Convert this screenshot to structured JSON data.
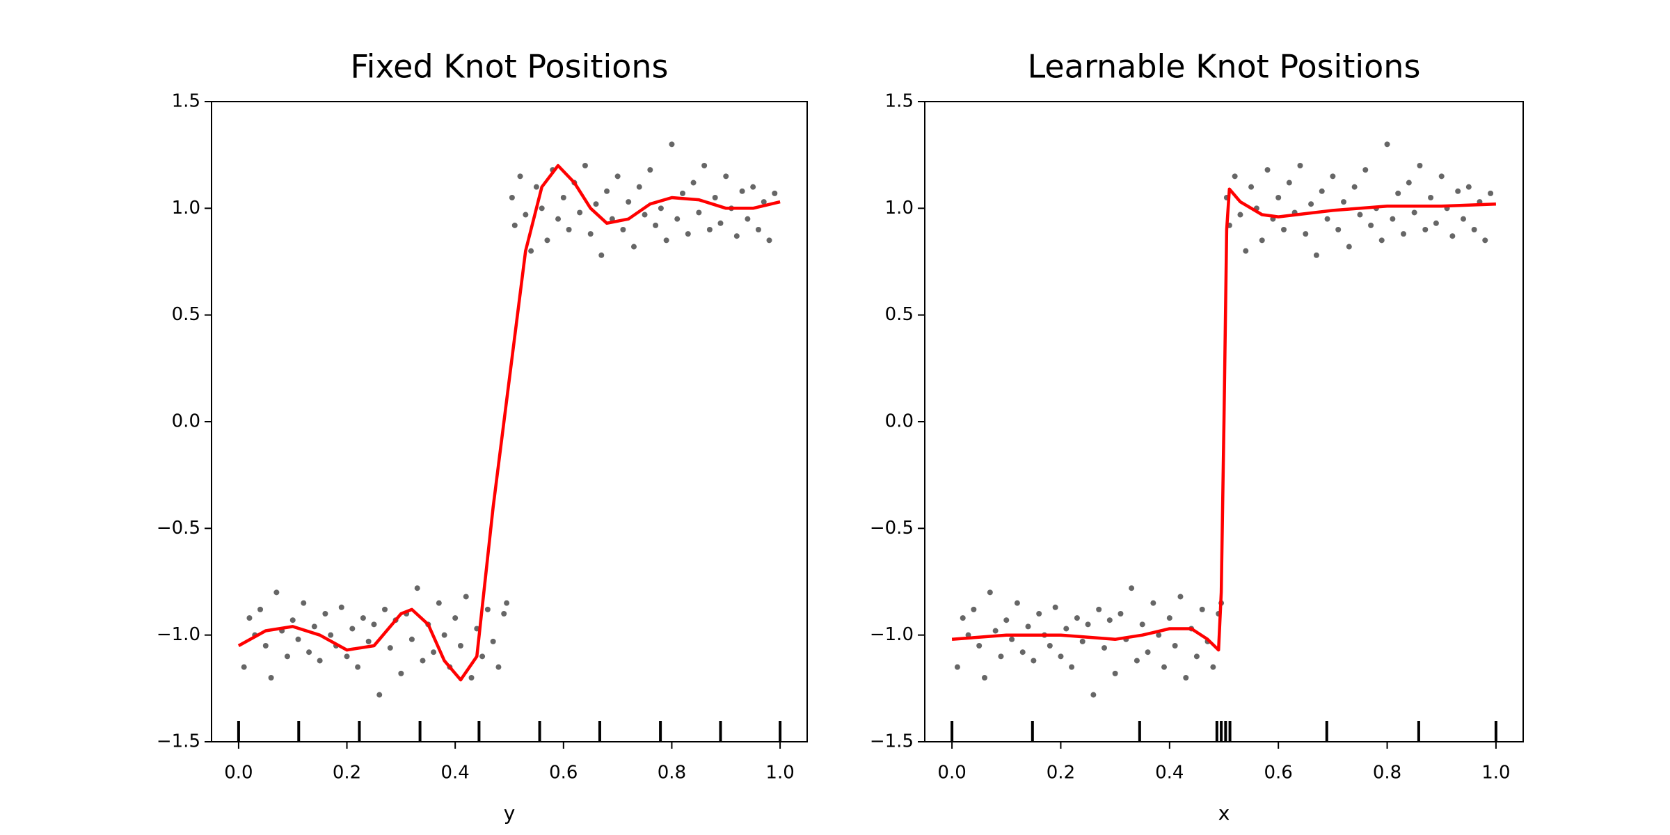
{
  "chart_data": [
    {
      "type": "scatter",
      "title": "Fixed Knot Positions",
      "xlabel": "y",
      "xlim": [
        -0.05,
        1.05
      ],
      "ylim": [
        -1.5,
        1.5
      ],
      "xticks": [
        {
          "value": 0,
          "label": "0.0"
        },
        {
          "value": 0.2,
          "label": "0.2"
        },
        {
          "value": 0.4,
          "label": "0.4"
        },
        {
          "value": 0.6,
          "label": "0.6"
        },
        {
          "value": 0.8,
          "label": "0.8"
        },
        {
          "value": 1,
          "label": "1.0"
        }
      ],
      "yticks": [
        {
          "value": -1.5,
          "label": "−1.5"
        },
        {
          "value": -1,
          "label": "−1.0"
        },
        {
          "value": -0.5,
          "label": "−0.5"
        },
        {
          "value": 0,
          "label": "0.0"
        },
        {
          "value": 0.5,
          "label": "0.5"
        },
        {
          "value": 1,
          "label": "1.0"
        },
        {
          "value": 1.5,
          "label": "1.5"
        }
      ],
      "points": {
        "color": "#333333",
        "x": [
          0.01,
          0.02,
          0.03,
          0.04,
          0.05,
          0.06,
          0.07,
          0.08,
          0.09,
          0.1,
          0.11,
          0.12,
          0.13,
          0.14,
          0.15,
          0.16,
          0.17,
          0.18,
          0.19,
          0.2,
          0.21,
          0.22,
          0.23,
          0.24,
          0.25,
          0.26,
          0.27,
          0.28,
          0.29,
          0.3,
          0.31,
          0.32,
          0.33,
          0.34,
          0.35,
          0.36,
          0.37,
          0.38,
          0.39,
          0.4,
          0.41,
          0.42,
          0.43,
          0.44,
          0.45,
          0.46,
          0.47,
          0.48,
          0.49,
          0.495,
          0.505,
          0.51,
          0.52,
          0.53,
          0.54,
          0.55,
          0.56,
          0.57,
          0.58,
          0.59,
          0.6,
          0.61,
          0.62,
          0.63,
          0.64,
          0.65,
          0.66,
          0.67,
          0.68,
          0.69,
          0.7,
          0.71,
          0.72,
          0.73,
          0.74,
          0.75,
          0.76,
          0.77,
          0.78,
          0.79,
          0.8,
          0.81,
          0.82,
          0.83,
          0.84,
          0.85,
          0.86,
          0.87,
          0.88,
          0.89,
          0.9,
          0.91,
          0.92,
          0.93,
          0.94,
          0.95,
          0.96,
          0.97,
          0.98,
          0.99
        ],
        "y": [
          -1.15,
          -0.92,
          -1.0,
          -0.88,
          -1.05,
          -1.2,
          -0.8,
          -0.98,
          -1.1,
          -0.93,
          -1.02,
          -0.85,
          -1.08,
          -0.96,
          -1.12,
          -0.9,
          -1.0,
          -1.05,
          -0.87,
          -1.1,
          -0.97,
          -1.15,
          -0.92,
          -1.03,
          -0.95,
          -1.28,
          -0.88,
          -1.06,
          -0.93,
          -1.18,
          -0.9,
          -1.02,
          -0.78,
          -1.12,
          -0.95,
          -1.08,
          -0.85,
          -1.0,
          -1.15,
          -0.92,
          -1.05,
          -0.82,
          -1.2,
          -0.97,
          -1.1,
          -0.88,
          -1.03,
          -1.15,
          -0.9,
          -0.85,
          1.05,
          0.92,
          1.15,
          0.97,
          0.8,
          1.1,
          1.0,
          0.85,
          1.18,
          0.95,
          1.05,
          0.9,
          1.12,
          0.98,
          1.2,
          0.88,
          1.02,
          0.78,
          1.08,
          0.95,
          1.15,
          0.9,
          1.03,
          0.82,
          1.1,
          0.97,
          1.18,
          0.92,
          1.0,
          0.85,
          1.3,
          0.95,
          1.07,
          0.88,
          1.12,
          0.98,
          1.2,
          0.9,
          1.05,
          0.93,
          1.15,
          1.0,
          0.87,
          1.08,
          0.95,
          1.1,
          0.9,
          1.03,
          0.85,
          1.07
        ]
      },
      "fit": {
        "color": "#ff0000",
        "x": [
          0,
          0.05,
          0.1,
          0.15,
          0.2,
          0.25,
          0.3,
          0.32,
          0.35,
          0.38,
          0.41,
          0.44,
          0.47,
          0.5,
          0.53,
          0.56,
          0.59,
          0.62,
          0.65,
          0.68,
          0.72,
          0.76,
          0.8,
          0.85,
          0.9,
          0.95,
          1.0
        ],
        "values": [
          -1.05,
          -0.98,
          -0.96,
          -1.0,
          -1.07,
          -1.05,
          -0.9,
          -0.88,
          -0.95,
          -1.12,
          -1.21,
          -1.1,
          -0.4,
          0.2,
          0.8,
          1.1,
          1.2,
          1.12,
          1.0,
          0.93,
          0.95,
          1.02,
          1.05,
          1.04,
          1.0,
          1.0,
          1.03
        ]
      },
      "knots": [
        0,
        0.111,
        0.223,
        0.335,
        0.444,
        0.556,
        0.667,
        0.779,
        0.89,
        1.0
      ]
    },
    {
      "type": "scatter",
      "title": "Learnable Knot Positions",
      "xlabel": "x",
      "xlim": [
        -0.05,
        1.05
      ],
      "ylim": [
        -1.5,
        1.5
      ],
      "xticks": [
        {
          "value": 0,
          "label": "0.0"
        },
        {
          "value": 0.2,
          "label": "0.2"
        },
        {
          "value": 0.4,
          "label": "0.4"
        },
        {
          "value": 0.6,
          "label": "0.6"
        },
        {
          "value": 0.8,
          "label": "0.8"
        },
        {
          "value": 1,
          "label": "1.0"
        }
      ],
      "yticks": [
        {
          "value": -1.5,
          "label": "−1.5"
        },
        {
          "value": -1,
          "label": "−1.0"
        },
        {
          "value": -0.5,
          "label": "−0.5"
        },
        {
          "value": 0,
          "label": "0.0"
        },
        {
          "value": 0.5,
          "label": "0.5"
        },
        {
          "value": 1,
          "label": "1.0"
        },
        {
          "value": 1.5,
          "label": "1.5"
        }
      ],
      "points": {
        "color": "#333333",
        "x": [
          0.01,
          0.02,
          0.03,
          0.04,
          0.05,
          0.06,
          0.07,
          0.08,
          0.09,
          0.1,
          0.11,
          0.12,
          0.13,
          0.14,
          0.15,
          0.16,
          0.17,
          0.18,
          0.19,
          0.2,
          0.21,
          0.22,
          0.23,
          0.24,
          0.25,
          0.26,
          0.27,
          0.28,
          0.29,
          0.3,
          0.31,
          0.32,
          0.33,
          0.34,
          0.35,
          0.36,
          0.37,
          0.38,
          0.39,
          0.4,
          0.41,
          0.42,
          0.43,
          0.44,
          0.45,
          0.46,
          0.47,
          0.48,
          0.49,
          0.495,
          0.505,
          0.51,
          0.52,
          0.53,
          0.54,
          0.55,
          0.56,
          0.57,
          0.58,
          0.59,
          0.6,
          0.61,
          0.62,
          0.63,
          0.64,
          0.65,
          0.66,
          0.67,
          0.68,
          0.69,
          0.7,
          0.71,
          0.72,
          0.73,
          0.74,
          0.75,
          0.76,
          0.77,
          0.78,
          0.79,
          0.8,
          0.81,
          0.82,
          0.83,
          0.84,
          0.85,
          0.86,
          0.87,
          0.88,
          0.89,
          0.9,
          0.91,
          0.92,
          0.93,
          0.94,
          0.95,
          0.96,
          0.97,
          0.98,
          0.99
        ],
        "y": [
          -1.15,
          -0.92,
          -1.0,
          -0.88,
          -1.05,
          -1.2,
          -0.8,
          -0.98,
          -1.1,
          -0.93,
          -1.02,
          -0.85,
          -1.08,
          -0.96,
          -1.12,
          -0.9,
          -1.0,
          -1.05,
          -0.87,
          -1.1,
          -0.97,
          -1.15,
          -0.92,
          -1.03,
          -0.95,
          -1.28,
          -0.88,
          -1.06,
          -0.93,
          -1.18,
          -0.9,
          -1.02,
          -0.78,
          -1.12,
          -0.95,
          -1.08,
          -0.85,
          -1.0,
          -1.15,
          -0.92,
          -1.05,
          -0.82,
          -1.2,
          -0.97,
          -1.1,
          -0.88,
          -1.03,
          -1.15,
          -0.9,
          -0.85,
          1.05,
          0.92,
          1.15,
          0.97,
          0.8,
          1.1,
          1.0,
          0.85,
          1.18,
          0.95,
          1.05,
          0.9,
          1.12,
          0.98,
          1.2,
          0.88,
          1.02,
          0.78,
          1.08,
          0.95,
          1.15,
          0.9,
          1.03,
          0.82,
          1.1,
          0.97,
          1.18,
          0.92,
          1.0,
          0.85,
          1.3,
          0.95,
          1.07,
          0.88,
          1.12,
          0.98,
          1.2,
          0.9,
          1.05,
          0.93,
          1.15,
          1.0,
          0.87,
          1.08,
          0.95,
          1.1,
          0.9,
          1.03,
          0.85,
          1.07
        ]
      },
      "fit": {
        "color": "#ff0000",
        "x": [
          0,
          0.1,
          0.2,
          0.3,
          0.35,
          0.4,
          0.44,
          0.47,
          0.49,
          0.495,
          0.5,
          0.505,
          0.51,
          0.53,
          0.57,
          0.6,
          0.7,
          0.8,
          0.9,
          1.0
        ],
        "values": [
          -1.02,
          -1.0,
          -1.0,
          -1.02,
          -1.0,
          -0.97,
          -0.97,
          -1.02,
          -1.07,
          -0.8,
          0.0,
          0.9,
          1.09,
          1.03,
          0.97,
          0.96,
          0.99,
          1.01,
          1.01,
          1.02
        ]
      },
      "knots": [
        0,
        0.148,
        0.345,
        0.487,
        0.495,
        0.503,
        0.511,
        0.689,
        0.858,
        1.0
      ]
    }
  ]
}
